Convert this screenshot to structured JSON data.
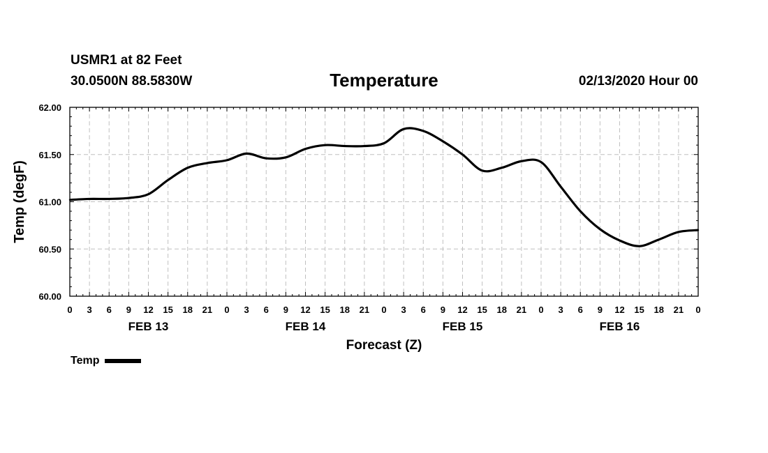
{
  "header": {
    "station": "USMR1 at 82 Feet",
    "coords": "30.0500N 88.5830W",
    "title": "Temperature",
    "run_time": "02/13/2020 Hour 00"
  },
  "legend": {
    "label": "Temp",
    "color": "#000000"
  },
  "chart_data": {
    "type": "line",
    "title": "Temperature",
    "xlabel": "Forecast (Z)",
    "ylabel": "Temp (degF)",
    "ylim": [
      60.0,
      62.0
    ],
    "xlim": [
      0,
      96
    ],
    "y_ticks": [
      "60.00",
      "60.50",
      "61.00",
      "61.50",
      "62.00"
    ],
    "x_tick_labels": [
      "0",
      "3",
      "6",
      "9",
      "12",
      "15",
      "18",
      "21",
      "0",
      "3",
      "6",
      "9",
      "12",
      "15",
      "18",
      "21",
      "0",
      "3",
      "6",
      "9",
      "12",
      "15",
      "18",
      "21",
      "0",
      "3",
      "6",
      "9",
      "12",
      "15",
      "18",
      "21",
      "0"
    ],
    "day_labels": [
      {
        "label": "FEB 13",
        "hour": 12
      },
      {
        "label": "FEB 14",
        "hour": 36
      },
      {
        "label": "FEB 15",
        "hour": 60
      },
      {
        "label": "FEB 16",
        "hour": 84
      }
    ],
    "grid": true,
    "series": [
      {
        "name": "Temp",
        "x": [
          0,
          3,
          6,
          9,
          12,
          15,
          18,
          21,
          24,
          27,
          30,
          33,
          36,
          39,
          42,
          45,
          48,
          51,
          54,
          57,
          60,
          63,
          66,
          69,
          72,
          75,
          78,
          81,
          84,
          87,
          90,
          93,
          96
        ],
        "values": [
          61.02,
          61.03,
          61.03,
          61.04,
          61.08,
          61.23,
          61.36,
          61.41,
          61.44,
          61.51,
          61.46,
          61.47,
          61.56,
          61.6,
          61.59,
          61.59,
          61.62,
          61.77,
          61.75,
          61.64,
          61.5,
          61.33,
          61.36,
          61.43,
          61.42,
          61.16,
          60.9,
          60.71,
          60.59,
          60.53,
          60.6,
          60.68,
          60.7
        ]
      }
    ]
  }
}
